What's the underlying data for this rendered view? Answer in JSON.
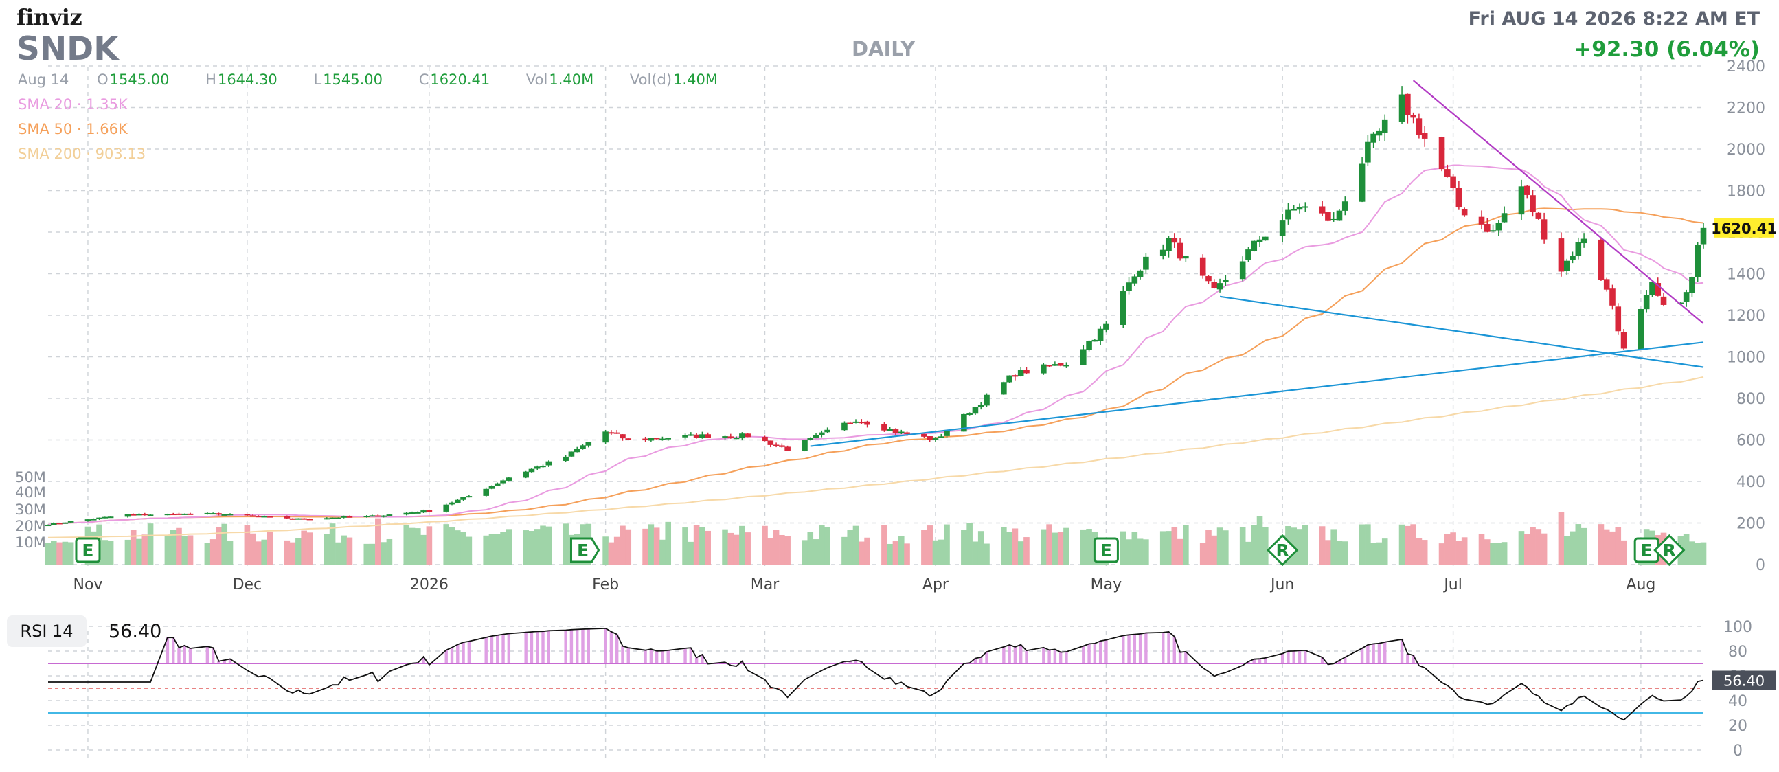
{
  "header": {
    "logo": "finviz",
    "ticker": "SNDK",
    "period": "DAILY",
    "datetime": "Fri AUG 14 2026 8:22 AM ET",
    "change": "+92.30 (6.04%)"
  },
  "ohlc": {
    "date": "Aug 14",
    "items": [
      {
        "key": "O",
        "value": "1545.00"
      },
      {
        "key": "H",
        "value": "1644.30"
      },
      {
        "key": "L",
        "value": "1545.00"
      },
      {
        "key": "C",
        "value": "1620.41"
      },
      {
        "key": "Vol",
        "value": "1.40M"
      },
      {
        "key": "Vol(d)",
        "value": "1.40M"
      }
    ]
  },
  "indicators": [
    {
      "label": "SMA 20",
      "value": "1.35K",
      "color": "#e99be0"
    },
    {
      "label": "SMA 50",
      "value": "1.66K",
      "color": "#f5a05a"
    },
    {
      "label": "SMA 200",
      "value": "903.13",
      "color": "#f7d9a8"
    }
  ],
  "price_badge": "1620.41",
  "rsi": {
    "label": "RSI 14",
    "value": "56.40",
    "badge": "56.40"
  },
  "colors": {
    "up": "#1e8f3a",
    "down": "#d8273b",
    "vol_up": "#9fd4a8",
    "vol_down": "#f2a5ad",
    "sma20": "#e99be0",
    "sma50": "#f5a05a",
    "sma200": "#f7d9a8",
    "trend_magenta": "#b23ac4",
    "trend_blue": "#1b95d6",
    "rsi_fill": "#dfa0e4"
  },
  "chart_data": {
    "type": "candlestick",
    "price_axis": {
      "ticks": [
        "2400",
        "2200",
        "2000",
        "1800",
        "1600",
        "1400",
        "1200",
        "1000",
        "800",
        "600",
        "400",
        "200",
        "0"
      ],
      "ylim": [
        0,
        2400
      ]
    },
    "volume_axis": {
      "ticks": [
        "50M",
        "40M",
        "30M",
        "20M",
        "10M"
      ]
    },
    "x_axis": {
      "ticks": [
        "Nov",
        "Dec",
        "2026",
        "Feb",
        "Mar",
        "Apr",
        "May",
        "Jun",
        "Jul",
        "Aug"
      ]
    },
    "anchors": [
      {
        "date": "Oct 27",
        "close": 195
      },
      {
        "date": "Nov 10",
        "close": 240
      },
      {
        "date": "Nov 25",
        "close": 245
      },
      {
        "date": "Dec 10",
        "close": 220
      },
      {
        "date": "Dec 24",
        "close": 235
      },
      {
        "date": "Jan 2",
        "close": 260
      },
      {
        "date": "Jan 9",
        "close": 330
      },
      {
        "date": "Jan 16",
        "close": 420
      },
      {
        "date": "Jan 26",
        "close": 520
      },
      {
        "date": "Feb 2",
        "close": 640
      },
      {
        "date": "Feb 6",
        "close": 600
      },
      {
        "date": "Feb 18",
        "close": 620
      },
      {
        "date": "Feb 27",
        "close": 620
      },
      {
        "date": "Mar 6",
        "close": 555
      },
      {
        "date": "Mar 18",
        "close": 700
      },
      {
        "date": "Mar 25",
        "close": 640
      },
      {
        "date": "Apr 1",
        "close": 600
      },
      {
        "date": "Apr 8",
        "close": 760
      },
      {
        "date": "Apr 15",
        "close": 920
      },
      {
        "date": "Apr 24",
        "close": 970
      },
      {
        "date": "May 1",
        "close": 1150
      },
      {
        "date": "May 6",
        "close": 1410
      },
      {
        "date": "May 12",
        "close": 1560
      },
      {
        "date": "May 20",
        "close": 1310
      },
      {
        "date": "May 28",
        "close": 1570
      },
      {
        "date": "Jun 4",
        "close": 1730
      },
      {
        "date": "Jun 10",
        "close": 1650
      },
      {
        "date": "Jun 16",
        "close": 2000
      },
      {
        "date": "Jun 22",
        "close": 2230
      },
      {
        "date": "Jun 26",
        "close": 2050
      },
      {
        "date": "Jun 30",
        "close": 1850
      },
      {
        "date": "Jul 2",
        "close": 1720
      },
      {
        "date": "Jul 8",
        "close": 1600
      },
      {
        "date": "Jul 13",
        "close": 1820
      },
      {
        "date": "Jul 20",
        "close": 1420
      },
      {
        "date": "Jul 24",
        "close": 1580
      },
      {
        "date": "Jul 29",
        "close": 1250
      },
      {
        "date": "Jul 31",
        "close": 1030
      },
      {
        "date": "Aug 5",
        "close": 1340
      },
      {
        "date": "Aug 7",
        "close": 1230
      },
      {
        "date": "Aug 11",
        "close": 1300
      },
      {
        "date": "Aug 12",
        "close": 1380
      },
      {
        "date": "Aug 13",
        "close": 1528
      },
      {
        "date": "Aug 14",
        "close": 1620
      }
    ],
    "events": [
      {
        "label": "E",
        "shape": "square",
        "date": "Nov 3"
      },
      {
        "label": "E",
        "shape": "hexagon",
        "date": "Jan 29"
      },
      {
        "label": "E",
        "shape": "square",
        "date": "May 1"
      },
      {
        "label": "R",
        "shape": "diamond",
        "date": "Jun 1"
      },
      {
        "label": "E",
        "shape": "square",
        "date": "Aug 4"
      },
      {
        "label": "R",
        "shape": "diamond",
        "date": "Aug 8"
      }
    ],
    "trendlines": [
      {
        "color": "magenta",
        "from": {
          "date": "Jun 24",
          "value": 2330
        },
        "to": {
          "date": "Aug 14",
          "value": 1160
        }
      },
      {
        "color": "blue",
        "from": {
          "date": "Mar 10",
          "value": 570
        },
        "to": {
          "date": "Aug 14",
          "value": 1070
        }
      },
      {
        "color": "blue",
        "from": {
          "date": "May 21",
          "value": 1290
        },
        "to": {
          "date": "Aug 14",
          "value": 950
        }
      }
    ],
    "rsi_axis": {
      "ticks": [
        "100",
        "80",
        "60",
        "40",
        "20",
        "0"
      ],
      "levels": [
        70,
        30
      ]
    }
  }
}
